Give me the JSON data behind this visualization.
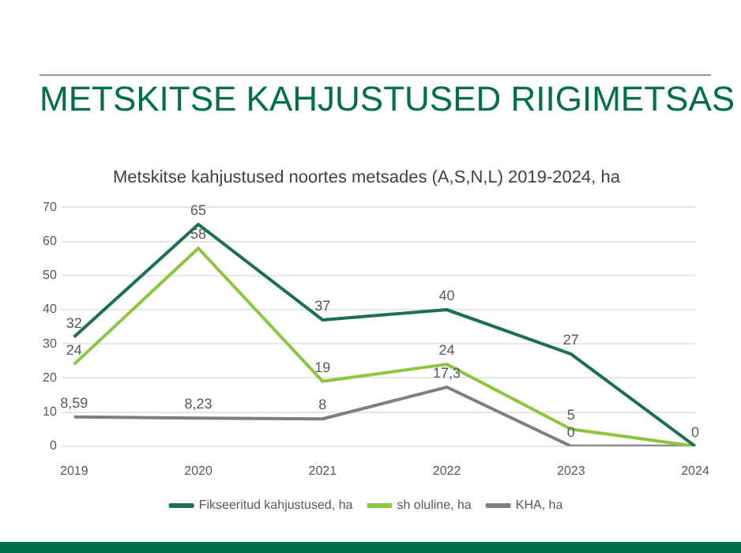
{
  "chart_data": {
    "type": "line",
    "title": "METSKITSE KAHJUSTUSED RIIGIMETSAS",
    "subtitle": "Metskitse kahjustused noortes metsades (A,S,N,L) 2019-2024, ha",
    "categories": [
      "2019",
      "2020",
      "2021",
      "2022",
      "2023",
      "2024"
    ],
    "series": [
      {
        "name": "Fikseeritud kahjustused, ha",
        "color": "#1a7050",
        "values": [
          32,
          65,
          37,
          40,
          27,
          0
        ],
        "value_labels": [
          "32",
          "65",
          "37",
          "40",
          "27",
          "0"
        ]
      },
      {
        "name": "sh oluline, ha",
        "color": "#8cc63f",
        "values": [
          24,
          58,
          19,
          24,
          5,
          0
        ],
        "value_labels": [
          "24",
          "58",
          "19",
          "24",
          "5",
          null
        ]
      },
      {
        "name": "KHA, ha",
        "color": "#7f7f7f",
        "values": [
          8.59,
          8.23,
          8,
          17.3,
          0,
          0
        ],
        "value_labels": [
          "8,59",
          "8,23",
          "8",
          "17,3",
          "0",
          null
        ]
      }
    ],
    "ylim": [
      0,
      70
    ],
    "yticks": [
      0,
      10,
      20,
      30,
      40,
      50,
      60,
      70
    ],
    "grid": "y",
    "legend": "bottom",
    "marker": "none",
    "line_style": "solid"
  }
}
